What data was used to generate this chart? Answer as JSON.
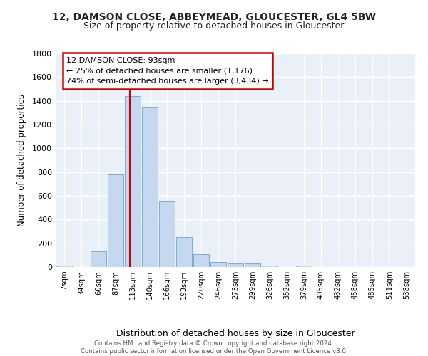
{
  "title1": "12, DAMSON CLOSE, ABBEYMEAD, GLOUCESTER, GL4 5BW",
  "title2": "Size of property relative to detached houses in Gloucester",
  "xlabel": "Distribution of detached houses by size in Gloucester",
  "ylabel": "Number of detached properties",
  "categories": [
    "7sqm",
    "34sqm",
    "60sqm",
    "87sqm",
    "113sqm",
    "140sqm",
    "166sqm",
    "193sqm",
    "220sqm",
    "246sqm",
    "273sqm",
    "299sqm",
    "326sqm",
    "352sqm",
    "379sqm",
    "405sqm",
    "432sqm",
    "458sqm",
    "485sqm",
    "511sqm",
    "538sqm"
  ],
  "values": [
    10,
    0,
    130,
    780,
    1440,
    1350,
    550,
    250,
    110,
    40,
    30,
    30,
    10,
    0,
    10,
    0,
    0,
    0,
    0,
    0,
    0
  ],
  "bar_color": "#c5d8f0",
  "bar_edge_color": "#7aadd4",
  "red_line_x": 3.85,
  "annotation_title": "12 DAMSON CLOSE: 93sqm",
  "annotation_line1": "← 25% of detached houses are smaller (1,176)",
  "annotation_line2": "74% of semi-detached houses are larger (3,434) →",
  "ylim": [
    0,
    1800
  ],
  "yticks": [
    0,
    200,
    400,
    600,
    800,
    1000,
    1200,
    1400,
    1600,
    1800
  ],
  "footer1": "Contains HM Land Registry data © Crown copyright and database right 2024.",
  "footer2": "Contains public sector information licensed under the Open Government Licence v3.0.",
  "background_color": "#eaf0f8",
  "grid_color": "#ffffff",
  "title1_fontsize": 10,
  "title2_fontsize": 9,
  "annotation_box_color": "#ffffff",
  "annotation_border_color": "#cc0000",
  "red_line_color": "#cc0000"
}
